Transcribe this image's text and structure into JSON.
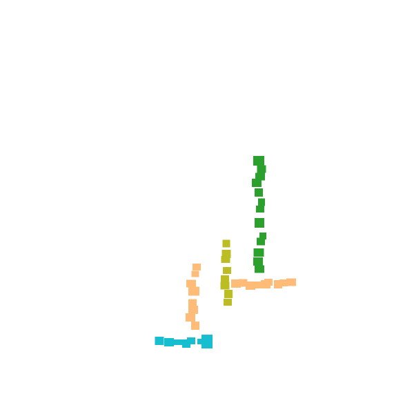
{
  "scene": {
    "background": "#ffffff",
    "groups": [
      {
        "name": "green-vertical-stroke",
        "color": "#2ca02c",
        "blocks": [
          [
            375,
            233,
            16,
            14
          ],
          [
            379,
            245,
            13,
            11
          ],
          [
            377,
            256,
            14,
            11
          ],
          [
            372,
            265,
            14,
            12
          ],
          [
            375,
            279,
            12,
            12
          ],
          [
            379,
            293,
            10,
            11
          ],
          [
            377,
            303,
            12,
            10
          ],
          [
            376,
            323,
            14,
            14
          ],
          [
            381,
            342,
            10,
            10
          ],
          [
            378,
            350,
            12,
            11
          ],
          [
            375,
            366,
            15,
            12
          ],
          [
            374,
            379,
            14,
            12
          ],
          [
            376,
            390,
            14,
            11
          ]
        ]
      },
      {
        "name": "olive-vertical-stroke",
        "color": "#bcbd22",
        "blocks": [
          [
            328,
            353,
            11,
            11
          ],
          [
            328,
            368,
            13,
            12
          ],
          [
            327,
            376,
            13,
            10
          ],
          [
            329,
            392,
            12,
            10
          ],
          [
            326,
            405,
            12,
            12
          ],
          [
            326,
            414,
            13,
            11
          ],
          [
            331,
            426,
            12,
            12
          ],
          [
            330,
            438,
            12,
            10
          ]
        ]
      },
      {
        "name": "peach-horizontal-stroke",
        "color": "#ffbb78",
        "blocks": [
          [
            342,
            411,
            14,
            12
          ],
          [
            352,
            410,
            13,
            11
          ],
          [
            363,
            414,
            14,
            12
          ],
          [
            374,
            413,
            12,
            10
          ],
          [
            385,
            412,
            14,
            12
          ],
          [
            389,
            409,
            12,
            10
          ],
          [
            403,
            412,
            12,
            12
          ],
          [
            411,
            410,
            12,
            10
          ],
          [
            422,
            409,
            14,
            11
          ]
        ]
      },
      {
        "name": "peach-vertical-stroke",
        "color": "#ffbb78",
        "blocks": [
          [
            285,
            387,
            12,
            10
          ],
          [
            283,
            397,
            11,
            9
          ],
          [
            277,
            411,
            14,
            11
          ],
          [
            281,
            422,
            16,
            13
          ],
          [
            279,
            439,
            12,
            11
          ],
          [
            280,
            449,
            14,
            12
          ],
          [
            276,
            460,
            14,
            12
          ],
          [
            283,
            472,
            12,
            12
          ]
        ]
      },
      {
        "name": "cyan-horizontal-stroke",
        "color": "#17becf",
        "blocks": [
          [
            231,
            494,
            13,
            12
          ],
          [
            245,
            496,
            14,
            12
          ],
          [
            258,
            496,
            12,
            8
          ],
          [
            270,
            498,
            12,
            12
          ],
          [
            277,
            494,
            12,
            10
          ],
          [
            291,
            495,
            10,
            8
          ],
          [
            300,
            495,
            16,
            20
          ]
        ]
      }
    ]
  }
}
